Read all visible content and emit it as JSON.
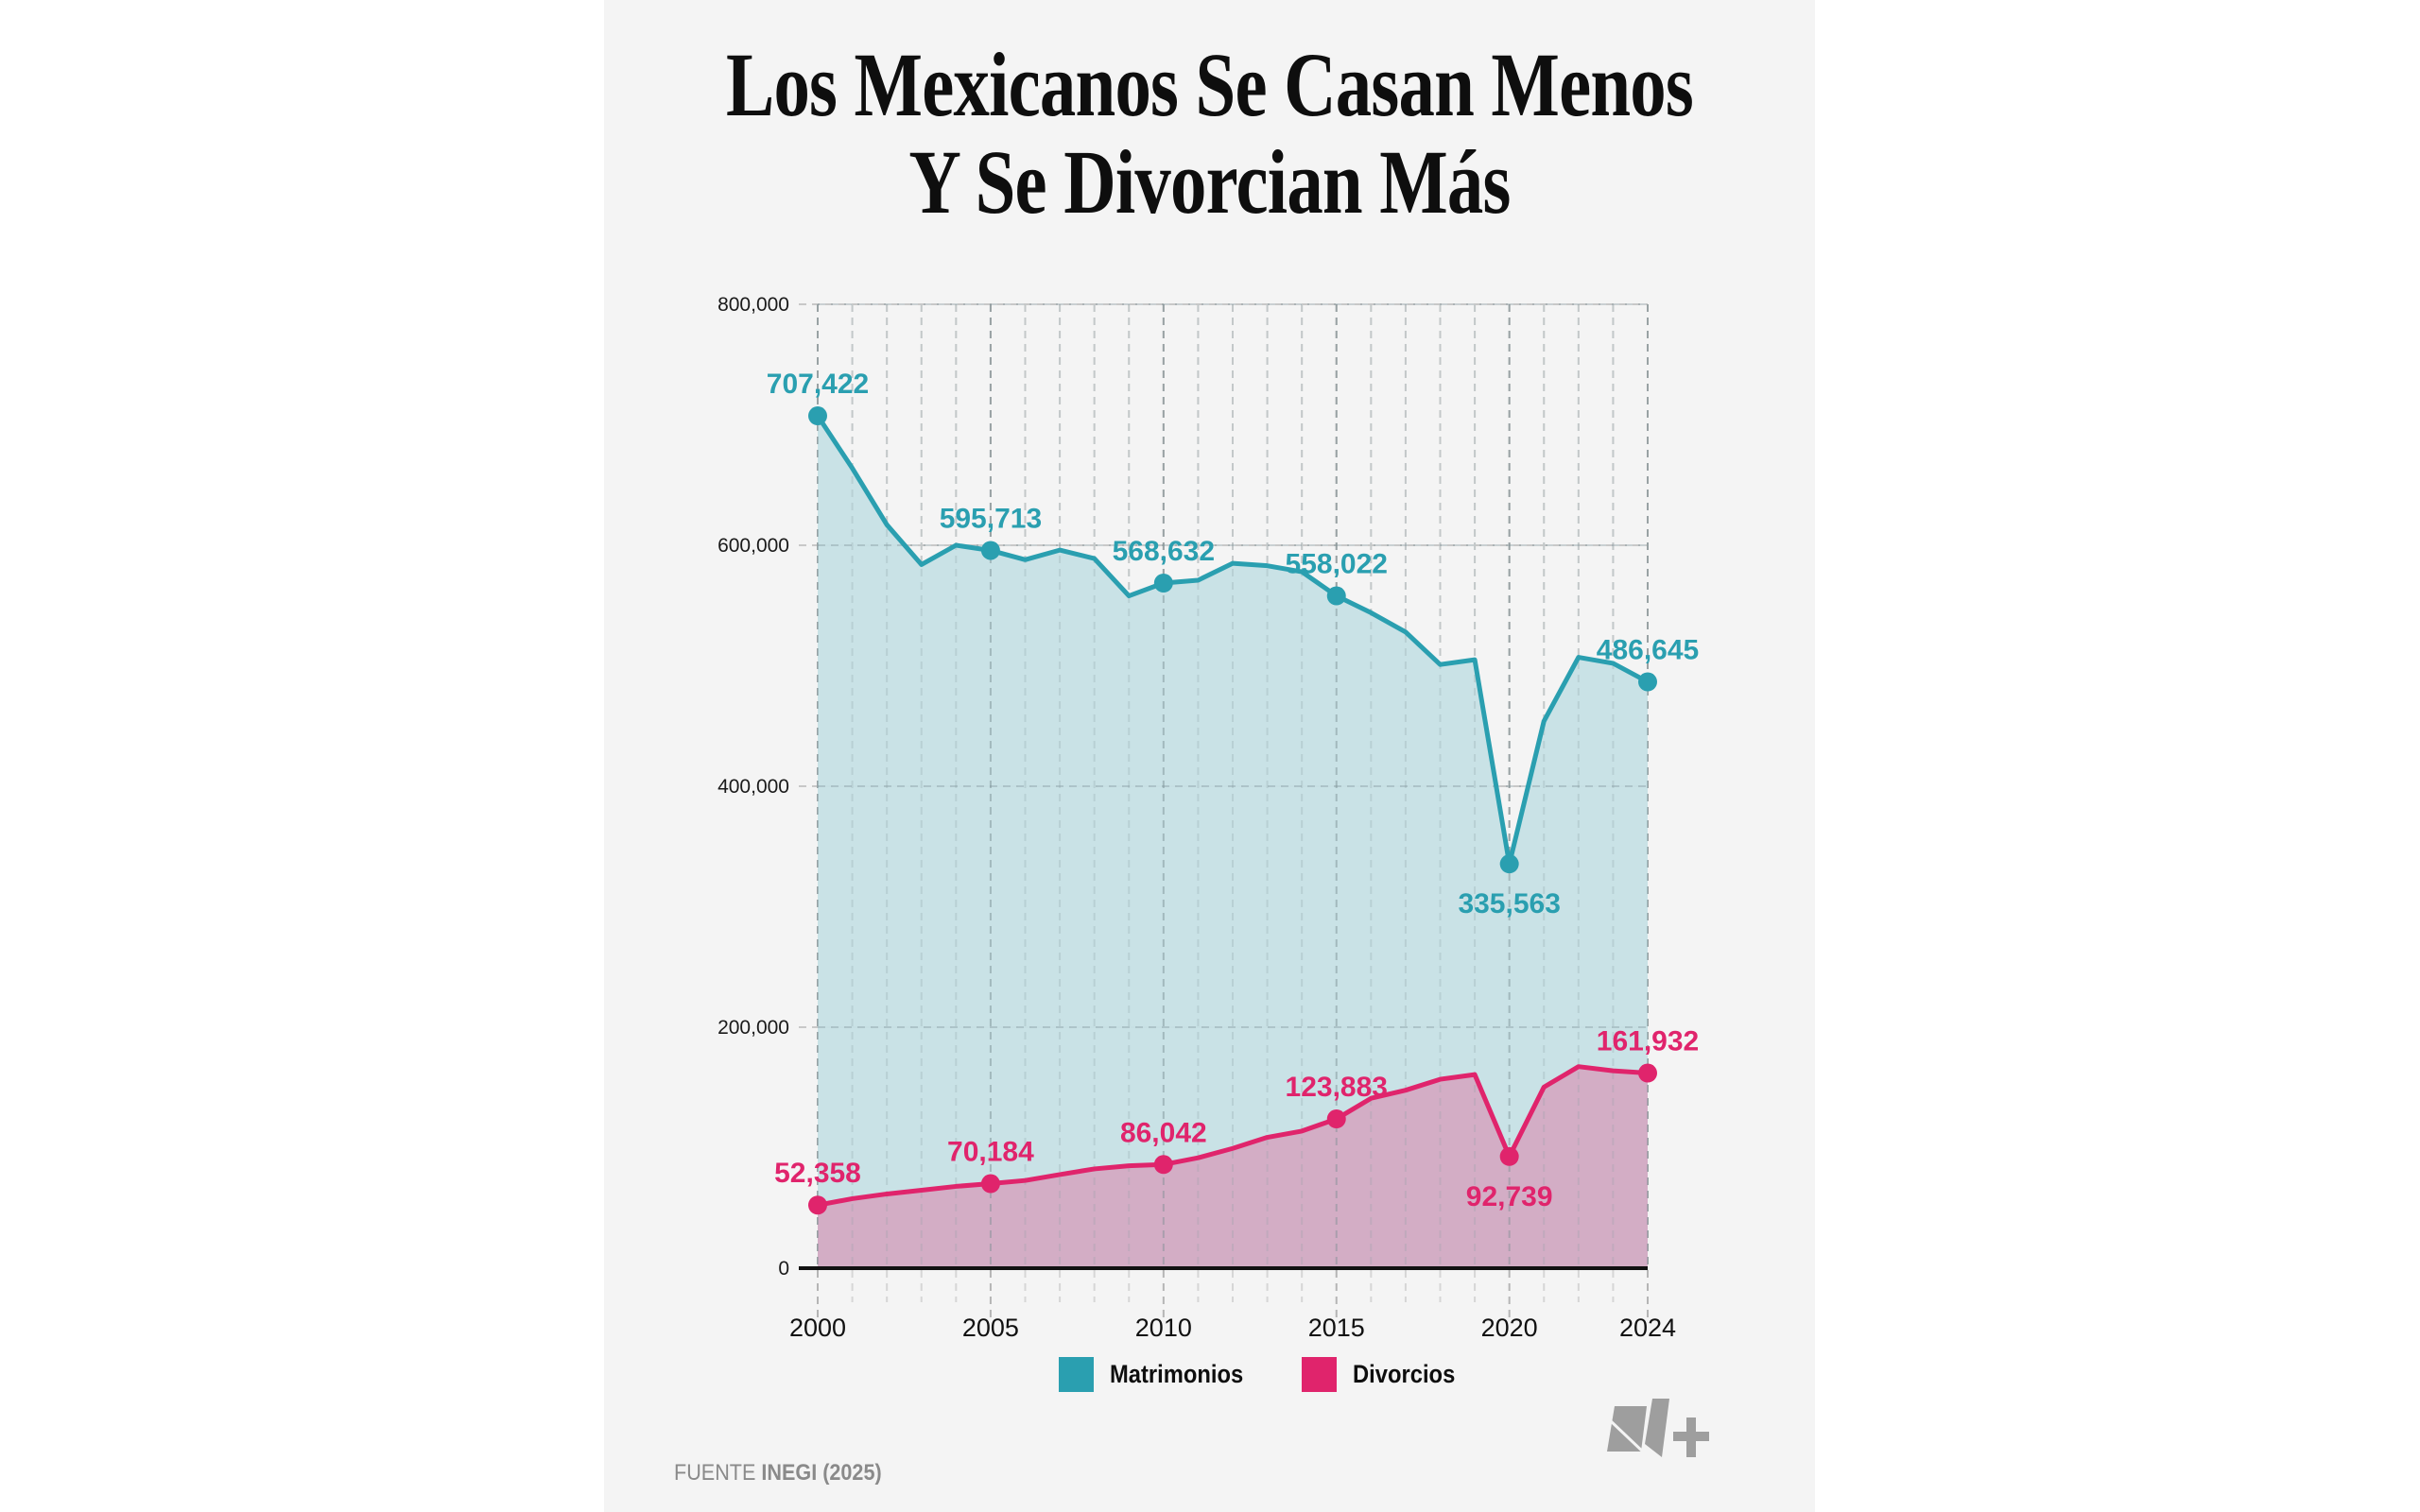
{
  "title": {
    "line1": "Los Mexicanos Se Casan Menos",
    "line2": "Y Se Divorcian Más"
  },
  "chart_data": {
    "type": "area",
    "title": "Los Mexicanos Se Casan Menos Y Se Divorcian Más",
    "xlabel": "",
    "ylabel": "",
    "x": [
      2000,
      2001,
      2002,
      2003,
      2004,
      2005,
      2006,
      2007,
      2008,
      2009,
      2010,
      2011,
      2012,
      2013,
      2014,
      2015,
      2016,
      2017,
      2018,
      2019,
      2020,
      2021,
      2022,
      2023,
      2024
    ],
    "xlim": [
      2000,
      2024
    ],
    "ylim": [
      0,
      800000
    ],
    "x_tick_labels": [
      "2000",
      "2005",
      "2010",
      "2015",
      "2020",
      "2024"
    ],
    "x_tick_values": [
      2000,
      2005,
      2010,
      2015,
      2020,
      2024
    ],
    "y_tick_values": [
      0,
      200000,
      400000,
      600000,
      800000
    ],
    "y_tick_labels": [
      "0",
      "200,000",
      "400,000",
      "600,000",
      "800,000"
    ],
    "grid": true,
    "legend_position": "bottom-center",
    "series": [
      {
        "name": "Matrimonios",
        "color": "#2a9fb0",
        "fill": "#c6e0e5",
        "values": [
          707422,
          664000,
          617000,
          584000,
          600000,
          595713,
          588000,
          596000,
          589000,
          558000,
          568632,
          571000,
          585000,
          583000,
          578000,
          558022,
          544000,
          528000,
          501000,
          505000,
          335563,
          454000,
          507000,
          502000,
          486645
        ],
        "annotations": [
          {
            "year": 2000,
            "label": "707,422",
            "position": "above"
          },
          {
            "year": 2005,
            "label": "595,713",
            "position": "above"
          },
          {
            "year": 2010,
            "label": "568,632",
            "position": "above"
          },
          {
            "year": 2015,
            "label": "558,022",
            "position": "above"
          },
          {
            "year": 2020,
            "label": "335,563",
            "position": "below"
          },
          {
            "year": 2024,
            "label": "486,645",
            "position": "above"
          }
        ]
      },
      {
        "name": "Divorcios",
        "color": "#e0246c",
        "fill": "#d3adc5",
        "values": [
          52358,
          57700,
          61600,
          64700,
          67900,
          70184,
          72800,
          77700,
          82400,
          85000,
          86042,
          91600,
          99400,
          108600,
          113800,
          123883,
          141000,
          147700,
          156800,
          160700,
          92739,
          150300,
          167300,
          163800,
          161932
        ],
        "annotations": [
          {
            "year": 2000,
            "label": "52,358",
            "position": "above"
          },
          {
            "year": 2005,
            "label": "70,184",
            "position": "above"
          },
          {
            "year": 2010,
            "label": "86,042",
            "position": "above"
          },
          {
            "year": 2015,
            "label": "123,883",
            "position": "above"
          },
          {
            "year": 2020,
            "label": "92,739",
            "position": "below"
          },
          {
            "year": 2024,
            "label": "161,932",
            "position": "above"
          }
        ]
      }
    ]
  },
  "legend": {
    "items": [
      {
        "label": "Matrimonios",
        "color": "#2a9fb0"
      },
      {
        "label": "Divorcios",
        "color": "#e0246c"
      }
    ]
  },
  "footer": {
    "prefix": "FUENTE ",
    "source": "INEGI (2025)"
  },
  "logo": {
    "icon": "nmas-logo-icon",
    "text": "N+"
  }
}
